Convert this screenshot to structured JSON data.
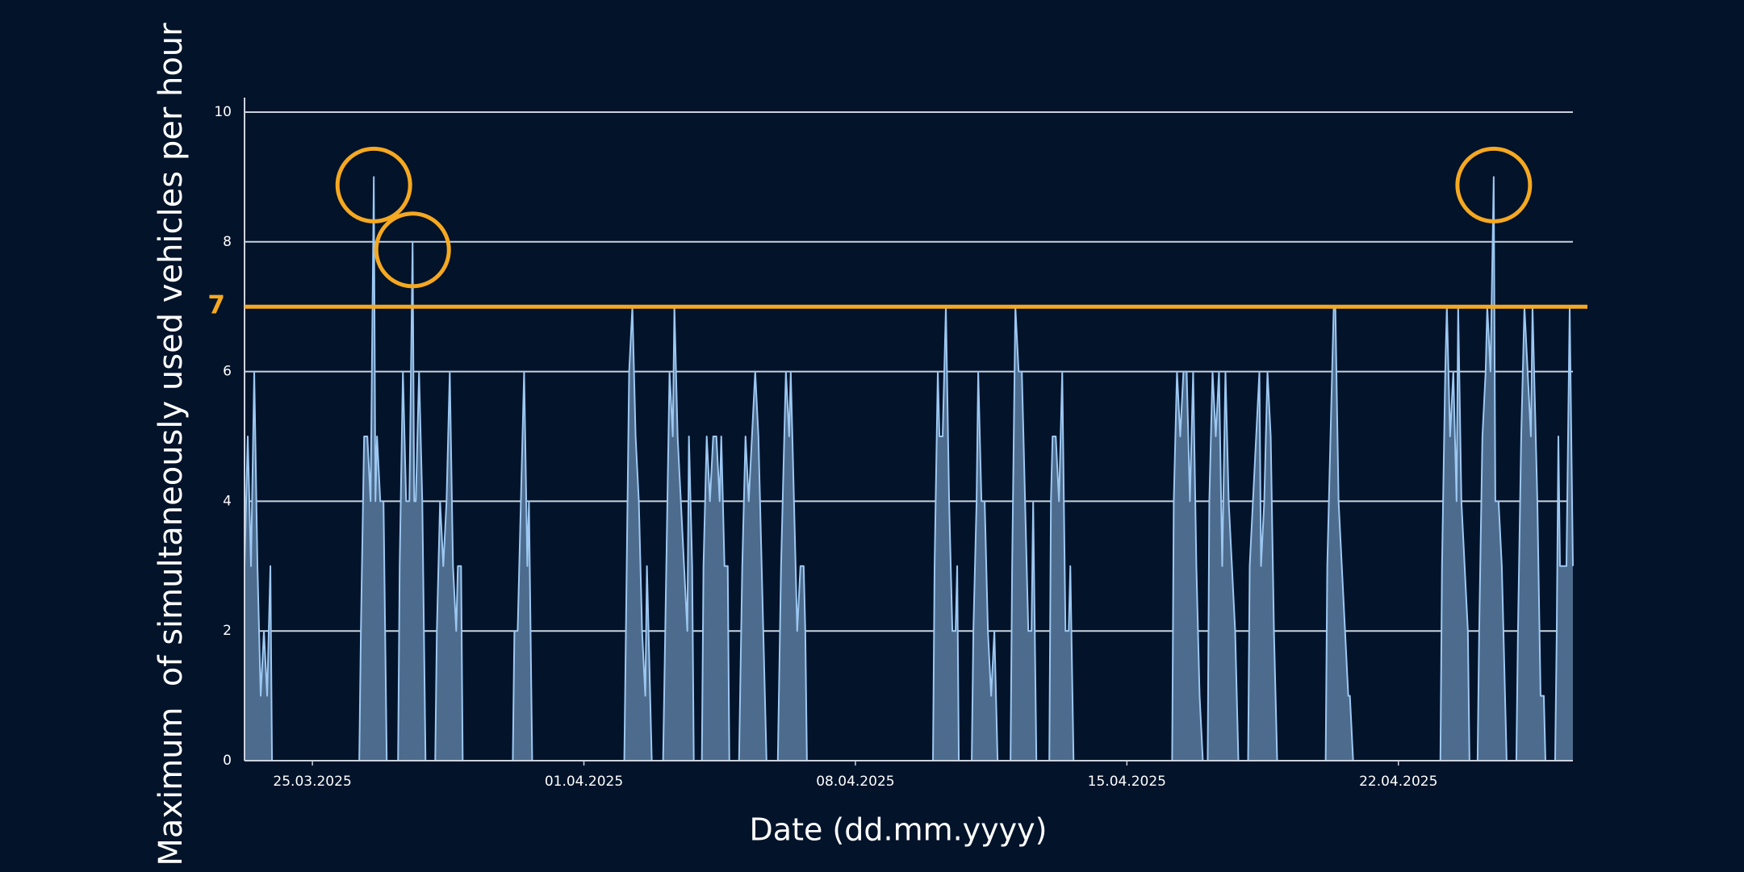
{
  "chart_data": {
    "type": "area",
    "y_label": "Maximum  of simultaneously used vehicles per hour",
    "x_label": "Date (dd.mm.yyyy)",
    "x": [
      "2025-03-23 06:00",
      "2025-03-23 08:00",
      "2025-03-23 10:00",
      "2025-03-23 12:00",
      "2025-03-23 14:00",
      "2025-03-23 16:00",
      "2025-03-23 18:00",
      "2025-03-23 20:00",
      "2025-03-23 22:00",
      "2025-03-23 23:00",
      "2025-03-26 05:00",
      "2025-03-26 06:00",
      "2025-03-26 08:00",
      "2025-03-26 10:00",
      "2025-03-26 12:00",
      "2025-03-26 14:00",
      "2025-03-26 15:00",
      "2025-03-26 16:00",
      "2025-03-26 18:00",
      "2025-03-26 20:00",
      "2025-03-26 22:00",
      "2025-03-27 05:00",
      "2025-03-27 06:00",
      "2025-03-27 08:00",
      "2025-03-27 10:00",
      "2025-03-27 12:00",
      "2025-03-27 14:00",
      "2025-03-27 15:00",
      "2025-03-27 16:00",
      "2025-03-27 18:00",
      "2025-03-27 20:00",
      "2025-03-27 22:00",
      "2025-03-28 04:00",
      "2025-03-28 05:00",
      "2025-03-28 07:00",
      "2025-03-28 09:00",
      "2025-03-28 11:00",
      "2025-03-28 13:00",
      "2025-03-28 15:00",
      "2025-03-28 17:00",
      "2025-03-28 18:00",
      "2025-03-28 20:00",
      "2025-03-28 21:00",
      "2025-03-30 04:00",
      "2025-03-30 05:00",
      "2025-03-30 07:00",
      "2025-03-30 09:00",
      "2025-03-30 11:00",
      "2025-03-30 13:00",
      "2025-03-30 14:00",
      "2025-03-30 16:00",
      "2025-04-02 01:00",
      "2025-04-02 02:00",
      "2025-04-02 04:00",
      "2025-04-02 06:00",
      "2025-04-02 08:00",
      "2025-04-02 10:00",
      "2025-04-02 12:00",
      "2025-04-02 14:00",
      "2025-04-02 15:00",
      "2025-04-02 16:00",
      "2025-04-02 18:00",
      "2025-04-03 01:00",
      "2025-04-03 03:00",
      "2025-04-03 05:00",
      "2025-04-03 07:00",
      "2025-04-03 08:00",
      "2025-04-03 10:00",
      "2025-04-03 12:00",
      "2025-04-03 14:00",
      "2025-04-03 16:00",
      "2025-04-03 17:00",
      "2025-04-03 19:00",
      "2025-04-03 20:00",
      "2025-04-04 01:00",
      "2025-04-04 02:00",
      "2025-04-04 04:00",
      "2025-04-04 06:00",
      "2025-04-04 08:00",
      "2025-04-04 10:00",
      "2025-04-04 12:00",
      "2025-04-04 13:00",
      "2025-04-04 15:00",
      "2025-04-04 17:00",
      "2025-04-04 18:00",
      "2025-04-05 00:00",
      "2025-04-05 02:00",
      "2025-04-05 04:00",
      "2025-04-05 06:00",
      "2025-04-05 08:00",
      "2025-04-05 10:00",
      "2025-04-05 12:00",
      "2025-04-05 14:00",
      "2025-04-05 15:00",
      "2025-04-05 17:00",
      "2025-04-06 00:00",
      "2025-04-06 02:00",
      "2025-04-06 04:00",
      "2025-04-06 05:00",
      "2025-04-06 07:00",
      "2025-04-06 08:00",
      "2025-04-06 10:00",
      "2025-04-06 12:00",
      "2025-04-06 14:00",
      "2025-04-06 16:00",
      "2025-04-06 17:00",
      "2025-04-06 18:00",
      "2025-04-10 00:00",
      "2025-04-10 01:00",
      "2025-04-10 03:00",
      "2025-04-10 04:00",
      "2025-04-10 06:00",
      "2025-04-10 08:00",
      "2025-04-10 10:00",
      "2025-04-10 12:00",
      "2025-04-10 14:00",
      "2025-04-10 15:00",
      "2025-04-10 16:00",
      "2025-04-11 00:00",
      "2025-04-11 01:00",
      "2025-04-11 03:00",
      "2025-04-11 04:00",
      "2025-04-11 06:00",
      "2025-04-11 08:00",
      "2025-04-11 10:00",
      "2025-04-11 12:00",
      "2025-04-11 14:00",
      "2025-04-11 16:00",
      "2025-04-12 00:00",
      "2025-04-12 01:00",
      "2025-04-12 03:00",
      "2025-04-12 05:00",
      "2025-04-12 07:00",
      "2025-04-12 09:00",
      "2025-04-12 11:00",
      "2025-04-12 13:00",
      "2025-04-12 14:00",
      "2025-04-12 15:00",
      "2025-04-12 16:00",
      "2025-04-13 00:00",
      "2025-04-13 01:00",
      "2025-04-13 02:00",
      "2025-04-13 04:00",
      "2025-04-13 06:00",
      "2025-04-13 08:00",
      "2025-04-13 10:00",
      "2025-04-13 12:00",
      "2025-04-13 13:00",
      "2025-04-13 15:00",
      "2025-04-16 04:00",
      "2025-04-16 05:00",
      "2025-04-16 07:00",
      "2025-04-16 09:00",
      "2025-04-16 11:00",
      "2025-04-16 13:00",
      "2025-04-16 15:00",
      "2025-04-16 17:00",
      "2025-04-16 19:00",
      "2025-04-16 21:00",
      "2025-04-16 23:00",
      "2025-04-17 02:00",
      "2025-04-17 03:00",
      "2025-04-17 05:00",
      "2025-04-17 07:00",
      "2025-04-17 09:00",
      "2025-04-17 11:00",
      "2025-04-17 13:00",
      "2025-04-17 15:00",
      "2025-04-17 17:00",
      "2025-04-17 19:00",
      "2025-04-17 21:00",
      "2025-04-18 03:00",
      "2025-04-18 04:00",
      "2025-04-18 06:00",
      "2025-04-18 08:00",
      "2025-04-18 10:00",
      "2025-04-18 11:00",
      "2025-04-18 13:00",
      "2025-04-18 15:00",
      "2025-04-18 17:00",
      "2025-04-18 19:00",
      "2025-04-18 21:00",
      "2025-04-20 03:00",
      "2025-04-20 04:00",
      "2025-04-20 06:00",
      "2025-04-20 08:00",
      "2025-04-20 09:00",
      "2025-04-20 11:00",
      "2025-04-20 13:00",
      "2025-04-20 15:00",
      "2025-04-20 17:00",
      "2025-04-20 18:00",
      "2025-04-20 20:00",
      "2025-04-23 02:00",
      "2025-04-23 03:00",
      "2025-04-23 05:00",
      "2025-04-23 06:00",
      "2025-04-23 08:00",
      "2025-04-23 10:00",
      "2025-04-23 12:00",
      "2025-04-23 13:00",
      "2025-04-23 15:00",
      "2025-04-23 17:00",
      "2025-04-23 19:00",
      "2025-04-23 20:00",
      "2025-04-24 01:00",
      "2025-04-24 02:00",
      "2025-04-24 04:00",
      "2025-04-24 06:00",
      "2025-04-24 07:00",
      "2025-04-24 09:00",
      "2025-04-24 11:00",
      "2025-04-24 12:00",
      "2025-04-24 14:00",
      "2025-04-24 16:00",
      "2025-04-24 17:00",
      "2025-04-24 19:00",
      "2025-04-25 01:00",
      "2025-04-25 02:00",
      "2025-04-25 04:00",
      "2025-04-25 06:00",
      "2025-04-25 08:00",
      "2025-04-25 10:00",
      "2025-04-25 11:00",
      "2025-04-25 13:00",
      "2025-04-25 14:00",
      "2025-04-25 16:00",
      "2025-04-25 18:00",
      "2025-04-25 19:00",
      "2025-04-26 01:00",
      "2025-04-26 02:00",
      "2025-04-26 03:00",
      "2025-04-26 04:00",
      "2025-04-26 06:00",
      "2025-04-26 08:00",
      "2025-04-26 10:00",
      "2025-04-26 12:00"
    ],
    "values": [
      3,
      5,
      3,
      6,
      3,
      1,
      2,
      1,
      3,
      0,
      0,
      2,
      5,
      5,
      4,
      9,
      4,
      5,
      4,
      4,
      0,
      0,
      3,
      6,
      4,
      4,
      8,
      4,
      4,
      6,
      4,
      0,
      0,
      2,
      4,
      3,
      4,
      6,
      3,
      2,
      3,
      3,
      0,
      0,
      2,
      2,
      4,
      6,
      3,
      4,
      0,
      0,
      2,
      6,
      7,
      5,
      4,
      2,
      1,
      3,
      2,
      0,
      0,
      3,
      6,
      5,
      7,
      5,
      4,
      3,
      2,
      5,
      3,
      0,
      0,
      3,
      5,
      4,
      5,
      5,
      4,
      5,
      3,
      3,
      0,
      0,
      3,
      5,
      4,
      5,
      6,
      5,
      3,
      2,
      0,
      0,
      3,
      5,
      6,
      5,
      6,
      4,
      2,
      3,
      3,
      2,
      0,
      0,
      3,
      6,
      5,
      5,
      7,
      4,
      2,
      2,
      3,
      0,
      0,
      2,
      4,
      6,
      4,
      4,
      2,
      1,
      2,
      0,
      0,
      3,
      7,
      6,
      6,
      4,
      2,
      2,
      4,
      2,
      0,
      0,
      4,
      5,
      5,
      4,
      6,
      2,
      2,
      3,
      0,
      0,
      4,
      6,
      5,
      6,
      6,
      4,
      6,
      3,
      1,
      0,
      0,
      4,
      6,
      5,
      6,
      3,
      6,
      4,
      3,
      2,
      0,
      0,
      3,
      4,
      5,
      6,
      3,
      4,
      6,
      5,
      2,
      0,
      0,
      3,
      5,
      7,
      7,
      4,
      3,
      2,
      1,
      1,
      0,
      0,
      3,
      6,
      7,
      5,
      6,
      4,
      7,
      4,
      3,
      2,
      0,
      0,
      2,
      5,
      6,
      7,
      6,
      9,
      4,
      4,
      3,
      2,
      0,
      0,
      2,
      5,
      7,
      6,
      5,
      7,
      5,
      4,
      1,
      1,
      0,
      0,
      2,
      5,
      3,
      3,
      3,
      7,
      3
    ],
    "fill_color": "#4d6b8c",
    "line_color": "#9cc8f2",
    "xlim": [
      "2025-03-23 06:00",
      "2025-04-26 12:00"
    ],
    "xticks": [
      {
        "value": "2025-03-25 00:00",
        "label": "25.03.2025"
      },
      {
        "value": "2025-04-01 00:00",
        "label": "01.04.2025"
      },
      {
        "value": "2025-04-08 00:00",
        "label": "08.04.2025"
      },
      {
        "value": "2025-04-15 00:00",
        "label": "15.04.2025"
      },
      {
        "value": "2025-04-22 00:00",
        "label": "22.04.2025"
      }
    ],
    "ylim": [
      0,
      10
    ],
    "yticks": [
      0,
      2,
      4,
      6,
      8,
      10
    ],
    "grid": true,
    "threshold": 7,
    "threshold_color": "#f5a821"
  }
}
